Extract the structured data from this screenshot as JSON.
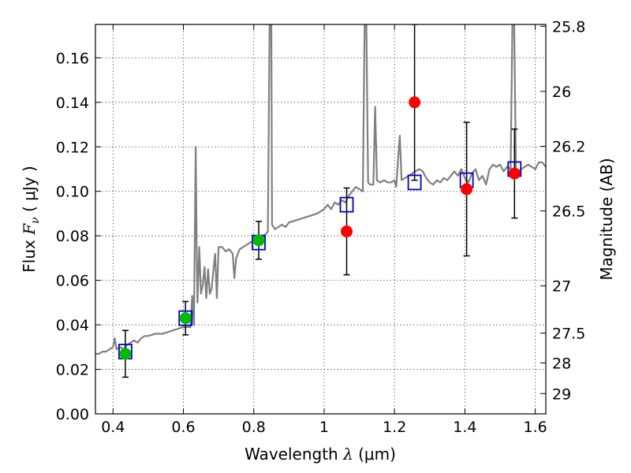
{
  "chart_data": {
    "type": "scatter",
    "title": "",
    "xlabel": "Wavelength  λ (μm)",
    "ylabel": "Flux  F_ν  ( μJy )",
    "ylabel_parts": {
      "pre": "Flux  ",
      "sym": "F",
      "sub": "ν",
      "post": "  ( μJy )"
    },
    "xlabel_parts": {
      "pre": "Wavelength  ",
      "sym": "λ",
      "post": " (μm)"
    },
    "y2label": "Magnitude (AB)",
    "xlim": [
      0.35,
      1.63
    ],
    "ylim": [
      0.0,
      0.175
    ],
    "x_ticks": [
      0.4,
      0.6,
      0.8,
      1.0,
      1.2,
      1.4,
      1.6
    ],
    "x_tick_labels": [
      "0.4",
      "0.6",
      "0.8",
      "1",
      "1.2",
      "1.4",
      "1.6"
    ],
    "y_ticks": [
      0.0,
      0.02,
      0.04,
      0.06,
      0.08,
      0.1,
      0.12,
      0.14,
      0.16
    ],
    "y_tick_labels": [
      "0.00",
      "0.02",
      "0.04",
      "0.06",
      "0.08",
      "0.10",
      "0.12",
      "0.14",
      "0.16"
    ],
    "y2_ticks": [
      {
        "label": "25.8",
        "flux": 0.1742
      },
      {
        "label": "26",
        "flux": 0.1449
      },
      {
        "label": "26.2",
        "flux": 0.1202
      },
      {
        "label": "26.5",
        "flux": 0.0912
      },
      {
        "label": "27",
        "flux": 0.0575
      },
      {
        "label": "27.5",
        "flux": 0.0363
      },
      {
        "label": "28",
        "flux": 0.0229
      },
      {
        "label": "29",
        "flux": 0.0091
      }
    ],
    "grid": true,
    "colors": {
      "spectrum": "#808080",
      "green": "#00bb00",
      "red": "#ff0000",
      "model": "#0000cc",
      "errorbar": "#000000"
    },
    "series": [
      {
        "kind": "line",
        "points": [
          [
            0.35,
            0.027
          ],
          [
            0.36,
            0.027
          ],
          [
            0.37,
            0.028
          ],
          [
            0.38,
            0.028
          ],
          [
            0.39,
            0.029
          ],
          [
            0.4,
            0.03
          ],
          [
            0.405,
            0.034
          ],
          [
            0.41,
            0.029
          ],
          [
            0.42,
            0.03
          ],
          [
            0.43,
            0.029
          ],
          [
            0.44,
            0.031
          ],
          [
            0.45,
            0.032
          ],
          [
            0.46,
            0.033
          ],
          [
            0.47,
            0.032
          ],
          [
            0.48,
            0.034
          ],
          [
            0.49,
            0.035
          ],
          [
            0.5,
            0.035
          ],
          [
            0.52,
            0.036
          ],
          [
            0.54,
            0.036
          ],
          [
            0.56,
            0.037
          ],
          [
            0.58,
            0.038
          ],
          [
            0.6,
            0.039
          ],
          [
            0.62,
            0.039
          ],
          [
            0.625,
            0.053
          ],
          [
            0.63,
            0.04
          ],
          [
            0.635,
            0.12
          ],
          [
            0.638,
            0.07
          ],
          [
            0.64,
            0.05
          ],
          [
            0.645,
            0.075
          ],
          [
            0.65,
            0.054
          ],
          [
            0.655,
            0.058
          ],
          [
            0.66,
            0.066
          ],
          [
            0.665,
            0.052
          ],
          [
            0.67,
            0.065
          ],
          [
            0.675,
            0.054
          ],
          [
            0.68,
            0.056
          ],
          [
            0.69,
            0.072
          ],
          [
            0.695,
            0.052
          ],
          [
            0.7,
            0.075
          ],
          [
            0.71,
            0.075
          ],
          [
            0.72,
            0.073
          ],
          [
            0.73,
            0.074
          ],
          [
            0.74,
            0.072
          ],
          [
            0.745,
            0.061
          ],
          [
            0.75,
            0.07
          ],
          [
            0.76,
            0.074
          ],
          [
            0.77,
            0.075
          ],
          [
            0.78,
            0.076
          ],
          [
            0.79,
            0.077
          ],
          [
            0.8,
            0.078
          ],
          [
            0.81,
            0.079
          ],
          [
            0.82,
            0.078
          ],
          [
            0.83,
            0.08
          ],
          [
            0.84,
            0.082
          ],
          [
            0.845,
            0.175
          ],
          [
            0.85,
            0.175
          ],
          [
            0.852,
            0.085
          ],
          [
            0.86,
            0.083
          ],
          [
            0.87,
            0.084
          ],
          [
            0.88,
            0.085
          ],
          [
            0.89,
            0.084
          ],
          [
            0.9,
            0.086
          ],
          [
            0.92,
            0.087
          ],
          [
            0.94,
            0.088
          ],
          [
            0.96,
            0.089
          ],
          [
            0.98,
            0.09
          ],
          [
            1.0,
            0.092
          ],
          [
            1.01,
            0.094
          ],
          [
            1.02,
            0.092
          ],
          [
            1.03,
            0.095
          ],
          [
            1.04,
            0.094
          ],
          [
            1.05,
            0.096
          ],
          [
            1.06,
            0.095
          ],
          [
            1.07,
            0.098
          ],
          [
            1.08,
            0.1
          ],
          [
            1.09,
            0.102
          ],
          [
            1.1,
            0.101
          ],
          [
            1.11,
            0.1
          ],
          [
            1.115,
            0.175
          ],
          [
            1.12,
            0.175
          ],
          [
            1.125,
            0.104
          ],
          [
            1.13,
            0.103
          ],
          [
            1.14,
            0.103
          ],
          [
            1.145,
            0.138
          ],
          [
            1.15,
            0.105
          ],
          [
            1.16,
            0.104
          ],
          [
            1.17,
            0.105
          ],
          [
            1.18,
            0.104
          ],
          [
            1.19,
            0.104
          ],
          [
            1.2,
            0.105
          ],
          [
            1.205,
            0.102
          ],
          [
            1.21,
            0.114
          ],
          [
            1.215,
            0.125
          ],
          [
            1.22,
            0.105
          ],
          [
            1.23,
            0.106
          ],
          [
            1.24,
            0.107
          ],
          [
            1.25,
            0.108
          ],
          [
            1.26,
            0.109
          ],
          [
            1.27,
            0.11
          ],
          [
            1.28,
            0.109
          ],
          [
            1.29,
            0.106
          ],
          [
            1.3,
            0.104
          ],
          [
            1.31,
            0.103
          ],
          [
            1.32,
            0.105
          ],
          [
            1.33,
            0.104
          ],
          [
            1.34,
            0.106
          ],
          [
            1.35,
            0.105
          ],
          [
            1.36,
            0.107
          ],
          [
            1.37,
            0.109
          ],
          [
            1.38,
            0.107
          ],
          [
            1.39,
            0.11
          ],
          [
            1.4,
            0.106
          ],
          [
            1.41,
            0.104
          ],
          [
            1.42,
            0.108
          ],
          [
            1.43,
            0.11
          ],
          [
            1.44,
            0.105
          ],
          [
            1.45,
            0.107
          ],
          [
            1.46,
            0.103
          ],
          [
            1.47,
            0.11
          ],
          [
            1.48,
            0.112
          ],
          [
            1.49,
            0.111
          ],
          [
            1.5,
            0.112
          ],
          [
            1.51,
            0.109
          ],
          [
            1.52,
            0.111
          ],
          [
            1.53,
            0.11
          ],
          [
            1.535,
            0.175
          ],
          [
            1.54,
            0.175
          ],
          [
            1.545,
            0.11
          ],
          [
            1.55,
            0.109
          ],
          [
            1.56,
            0.11
          ],
          [
            1.57,
            0.111
          ],
          [
            1.58,
            0.112
          ],
          [
            1.59,
            0.111
          ],
          [
            1.6,
            0.11
          ],
          [
            1.61,
            0.113
          ],
          [
            1.62,
            0.113
          ],
          [
            1.63,
            0.111
          ]
        ]
      },
      {
        "kind": "model_points",
        "points": [
          {
            "x": 0.435,
            "y": 0.028
          },
          {
            "x": 0.606,
            "y": 0.043
          },
          {
            "x": 0.814,
            "y": 0.077
          },
          {
            "x": 1.064,
            "y": 0.094
          },
          {
            "x": 1.257,
            "y": 0.104
          },
          {
            "x": 1.405,
            "y": 0.105
          },
          {
            "x": 1.541,
            "y": 0.11
          }
        ]
      },
      {
        "kind": "observed_points",
        "points": [
          {
            "x": 0.435,
            "y": 0.027,
            "err": 0.0105,
            "color": "green"
          },
          {
            "x": 0.606,
            "y": 0.043,
            "err": 0.0075,
            "color": "green"
          },
          {
            "x": 0.814,
            "y": 0.078,
            "err": 0.0085,
            "color": "green"
          },
          {
            "x": 1.064,
            "y": 0.082,
            "err": 0.0195,
            "color": "red"
          },
          {
            "x": 1.257,
            "y": 0.14,
            "err": 0.035,
            "color": "red"
          },
          {
            "x": 1.405,
            "y": 0.101,
            "err": 0.03,
            "color": "red"
          },
          {
            "x": 1.541,
            "y": 0.108,
            "err": 0.02,
            "color": "red"
          }
        ]
      }
    ]
  }
}
